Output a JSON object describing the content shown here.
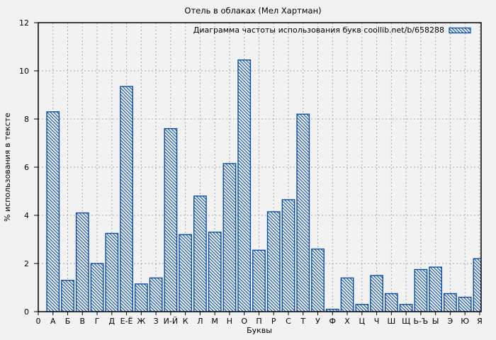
{
  "chart_data": {
    "type": "bar",
    "title": "Отель в облаках (Мел Хартман)",
    "legend": "Диаграмма частоты использования букв coollib.net/b/658288",
    "legend_position": "top-right-inside",
    "xlabel": "Буквы",
    "ylabel": "% использования в тексте",
    "origin_tick_label": "0",
    "categories": [
      "А",
      "Б",
      "В",
      "Г",
      "Д",
      "Е-Ё",
      "Ж",
      "З",
      "И-Й",
      "К",
      "Л",
      "М",
      "Н",
      "О",
      "П",
      "Р",
      "С",
      "Т",
      "У",
      "Ф",
      "Х",
      "Ц",
      "Ч",
      "Ш",
      "Щ",
      "Ь-Ъ",
      "Ы",
      "Э",
      "Ю",
      "Я"
    ],
    "values": [
      8.3,
      1.3,
      4.1,
      2.0,
      3.25,
      9.35,
      1.15,
      1.4,
      7.6,
      3.2,
      4.8,
      3.3,
      6.15,
      10.45,
      2.55,
      4.15,
      4.65,
      8.2,
      2.6,
      0.1,
      1.4,
      0.3,
      1.5,
      0.75,
      0.3,
      1.75,
      1.85,
      0.75,
      0.6,
      2.2
    ],
    "yticks": [
      0,
      2,
      4,
      6,
      8,
      10,
      12
    ],
    "ylim": [
      0,
      12
    ],
    "xlim": [
      0,
      30.1
    ],
    "grid": true,
    "bar_style": "hatched-diagonal",
    "colors": {
      "bar_stroke": "#0b4fa5",
      "bar_hatch": "#0b4fa5",
      "bar_fill": "#f2f2f2",
      "background": "#f2f2f2",
      "grid": "#a8a8a8",
      "axis": "#000000",
      "text": "#000000"
    }
  }
}
